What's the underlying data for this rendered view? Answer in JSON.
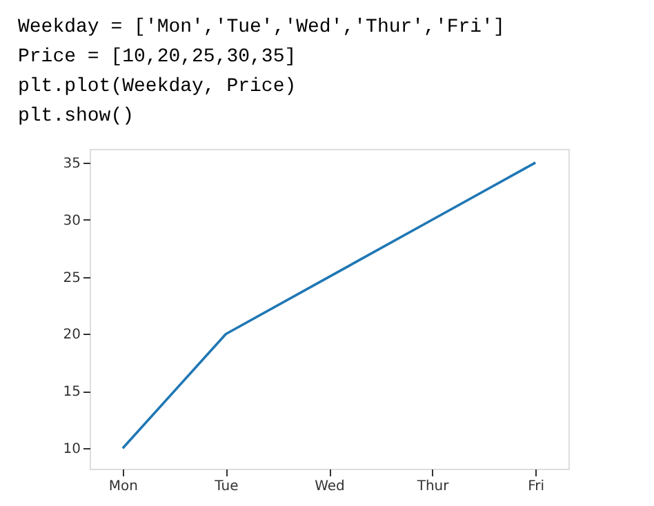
{
  "chart_data": {
    "type": "line",
    "annotations": [
      "Weekday = ['Mon','Tue','Wed','Thur','Fri']",
      "Price = [10,20,25,30,35]",
      "plt.plot(Weekday, Price)",
      "plt.show()"
    ],
    "categories": [
      "Mon",
      "Tue",
      "Wed",
      "Thur",
      "Fri"
    ],
    "series": [
      {
        "color": "#1f77b4",
        "values": [
          10,
          20,
          25,
          30,
          35
        ]
      }
    ],
    "ylim": [
      8.2,
      36.2
    ],
    "yticks": [
      10,
      15,
      20,
      25,
      30,
      35
    ],
    "grid": false,
    "marker": "none",
    "line_style": "solid"
  }
}
